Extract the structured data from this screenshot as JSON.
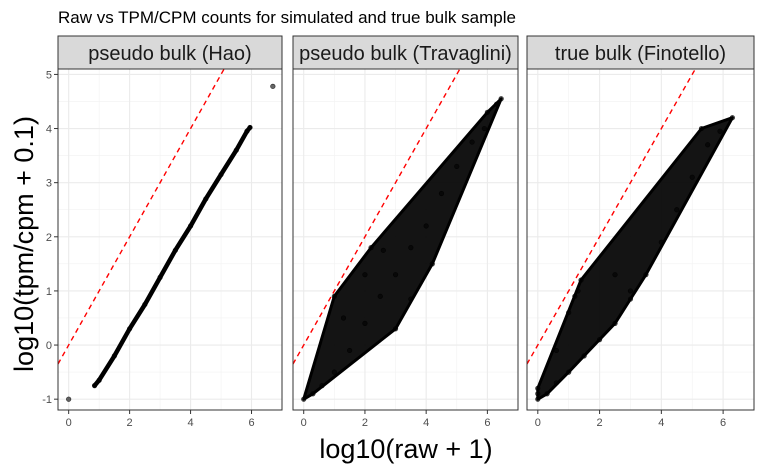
{
  "chart_data": {
    "type": "scatter",
    "title": "Raw vs TPM/CPM counts for simulated and true bulk sample",
    "xlabel": "log10(raw + 1)",
    "ylabel": "log10(tpm/cpm + 0.1)",
    "xlim": [
      -0.35,
      7.0
    ],
    "ylim": [
      -1.2,
      5.1
    ],
    "x_ticks": [
      0,
      2,
      4,
      6
    ],
    "y_ticks": [
      -1,
      0,
      1,
      2,
      3,
      4,
      5
    ],
    "grid": true,
    "reference_line": {
      "slope": 1,
      "intercept": 0,
      "color": "#ff0000",
      "style": "dashed"
    },
    "point_color": "#000000",
    "panels": [
      {
        "name": "pseudo bulk (Hao)",
        "points": [
          [
            0.0,
            -1.0
          ],
          [
            0.85,
            -0.75
          ],
          [
            1.0,
            -0.65
          ],
          [
            1.5,
            -0.2
          ],
          [
            2.0,
            0.3
          ],
          [
            2.5,
            0.75
          ],
          [
            3.0,
            1.25
          ],
          [
            3.5,
            1.75
          ],
          [
            4.0,
            2.2
          ],
          [
            4.5,
            2.7
          ],
          [
            5.0,
            3.15
          ],
          [
            5.5,
            3.6
          ],
          [
            5.85,
            3.95
          ],
          [
            5.95,
            4.02
          ],
          [
            6.7,
            4.78
          ]
        ]
      },
      {
        "name": "pseudo bulk (Travaglini)",
        "points": [
          [
            0.0,
            -1.0
          ],
          [
            0.3,
            -0.9
          ],
          [
            0.6,
            -0.75
          ],
          [
            1.0,
            -0.5
          ],
          [
            1.5,
            -0.1
          ],
          [
            2.0,
            0.4
          ],
          [
            2.5,
            0.9
          ],
          [
            3.0,
            1.3
          ],
          [
            3.5,
            1.8
          ],
          [
            4.0,
            2.2
          ],
          [
            4.5,
            2.8
          ],
          [
            5.0,
            3.3
          ],
          [
            5.5,
            3.75
          ],
          [
            5.9,
            4.0
          ],
          [
            6.0,
            4.3
          ],
          [
            6.3,
            4.45
          ],
          [
            6.45,
            4.55
          ],
          [
            2.2,
            1.8
          ],
          [
            2.6,
            1.75
          ],
          [
            2.0,
            1.3
          ],
          [
            3.0,
            0.3
          ],
          [
            3.5,
            0.85
          ],
          [
            4.2,
            1.5
          ],
          [
            1.0,
            0.9
          ],
          [
            1.3,
            0.5
          ]
        ]
      },
      {
        "name": "true bulk (Finotello)",
        "points": [
          [
            0.0,
            -1.0
          ],
          [
            0.3,
            -0.9
          ],
          [
            0.6,
            -0.7
          ],
          [
            1.0,
            -0.5
          ],
          [
            1.5,
            -0.2
          ],
          [
            2.0,
            0.1
          ],
          [
            2.5,
            0.4
          ],
          [
            3.0,
            0.85
          ],
          [
            3.5,
            1.3
          ],
          [
            4.0,
            1.9
          ],
          [
            4.5,
            2.5
          ],
          [
            5.0,
            3.1
          ],
          [
            5.5,
            3.7
          ],
          [
            5.9,
            3.95
          ],
          [
            6.3,
            4.2
          ],
          [
            1.0,
            0.6
          ],
          [
            1.2,
            0.9
          ],
          [
            1.3,
            1.0
          ],
          [
            1.4,
            1.2
          ],
          [
            2.5,
            1.3
          ],
          [
            3.0,
            1.0
          ],
          [
            0.6,
            -0.1
          ],
          [
            0.0,
            -0.9
          ],
          [
            0.0,
            -0.8
          ],
          [
            5.3,
            4.0
          ]
        ]
      }
    ]
  }
}
